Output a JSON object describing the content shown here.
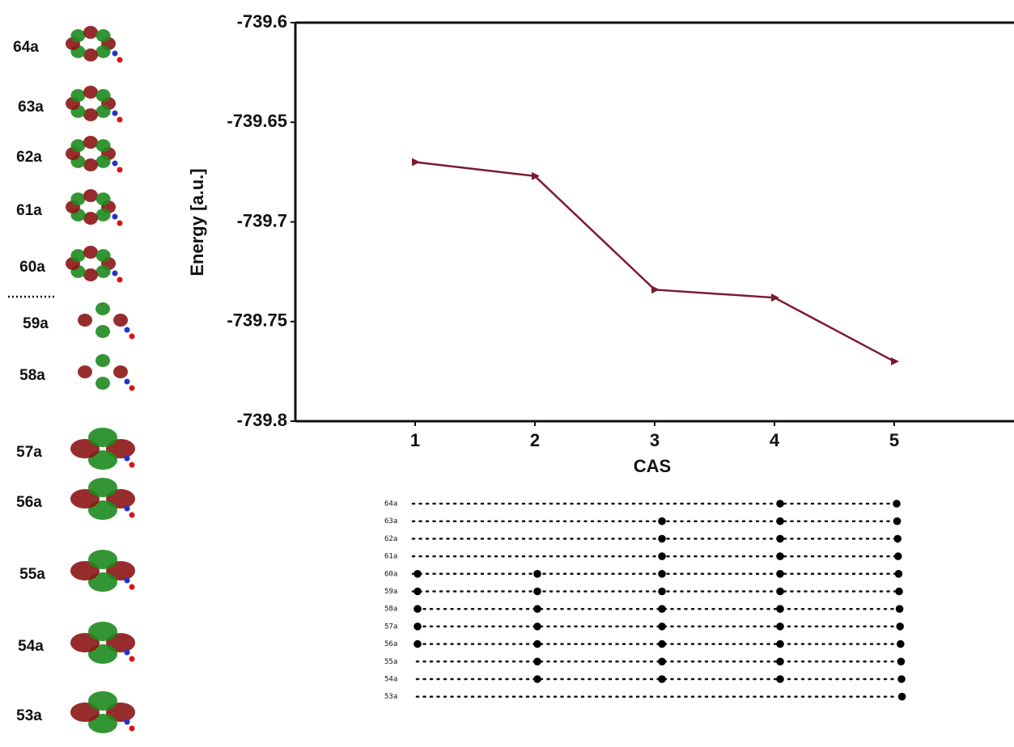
{
  "chart_data": {
    "type": "line",
    "x_label": "CAS",
    "y_label": "Energy [a.u.]",
    "x": [
      1,
      2,
      3,
      4,
      5
    ],
    "series": [
      {
        "color": "#7b1a2e",
        "values": [
          -739.67,
          -739.677,
          -739.734,
          -739.738,
          -739.77
        ]
      }
    ],
    "xlim": [
      0,
      6
    ],
    "xticks": [
      1,
      2,
      3,
      4,
      5
    ],
    "ylim": [
      -739.8,
      -739.6
    ],
    "yticks": [
      -739.8,
      -739.75,
      -739.7,
      -739.65,
      -739.6
    ]
  },
  "orbitals": {
    "labels": [
      "64a",
      "63a",
      "62a",
      "61a",
      "60a",
      "59a",
      "58a",
      "57a",
      "56a",
      "55a",
      "54a",
      "53a"
    ]
  },
  "active_space": {
    "rows": [
      "64a",
      "63a",
      "62a",
      "61a",
      "60a",
      "59a",
      "58a",
      "57a",
      "56a",
      "55a",
      "54a",
      "53a"
    ],
    "dots": [
      [
        false,
        false,
        false,
        true,
        true
      ],
      [
        false,
        false,
        true,
        true,
        true
      ],
      [
        false,
        false,
        true,
        true,
        true
      ],
      [
        false,
        false,
        true,
        true,
        true
      ],
      [
        true,
        true,
        true,
        true,
        true
      ],
      [
        true,
        true,
        true,
        true,
        true
      ],
      [
        true,
        true,
        true,
        true,
        true
      ],
      [
        true,
        true,
        true,
        true,
        true
      ],
      [
        true,
        true,
        true,
        true,
        true
      ],
      [
        false,
        true,
        true,
        true,
        true
      ],
      [
        false,
        true,
        true,
        true,
        true
      ],
      [
        false,
        false,
        false,
        false,
        true
      ]
    ]
  }
}
